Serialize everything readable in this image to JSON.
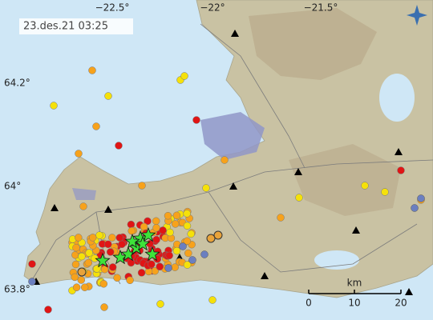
{
  "timestamp": "23.des.21  03:25",
  "longitude_labels": [
    "−22.5°",
    "−22°",
    "−21.5°"
  ],
  "latitude_labels": [
    "64.2°",
    "64°",
    "63.8°"
  ],
  "scale": {
    "unit": "km",
    "ticks": [
      "0",
      "10",
      "20"
    ]
  }
}
